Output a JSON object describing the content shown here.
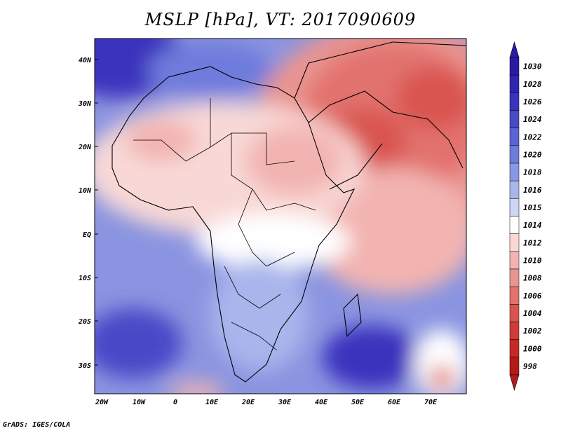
{
  "map": {
    "title": "MSLP [hPa], VT: 2017090609",
    "lat_labels": [
      "40N",
      "30N",
      "20N",
      "10N",
      "EQ",
      "10S",
      "20S",
      "30S"
    ],
    "lon_labels": [
      "20W",
      "10W",
      "0",
      "10E",
      "20E",
      "30E",
      "40E",
      "50E",
      "60E",
      "70E"
    ],
    "credit": "GrADS: IGES/COLA"
  },
  "colorbar": {
    "levels": [
      {
        "label": "1030",
        "color": "#2a1aa6"
      },
      {
        "label": "1028",
        "color": "#3024b0"
      },
      {
        "label": "1026",
        "color": "#3a33bd"
      },
      {
        "label": "1024",
        "color": "#4a4ac8"
      },
      {
        "label": "1022",
        "color": "#5c63d2"
      },
      {
        "label": "1020",
        "color": "#6e7cdc"
      },
      {
        "label": "1018",
        "color": "#8898e4"
      },
      {
        "label": "1016",
        "color": "#a9b6ec"
      },
      {
        "label": "1015",
        "color": "#cfd6f4"
      },
      {
        "label": "1014",
        "color": "#ffffff"
      },
      {
        "label": "1012",
        "color": "#f8d8d6"
      },
      {
        "label": "1010",
        "color": "#f2b4b1"
      },
      {
        "label": "1008",
        "color": "#ea9490"
      },
      {
        "label": "1006",
        "color": "#e2726e"
      },
      {
        "label": "1004",
        "color": "#d9544f"
      },
      {
        "label": "1002",
        "color": "#cf3b36"
      },
      {
        "label": "1000",
        "color": "#c42a26"
      },
      {
        "label": "998",
        "color": "#b31b18"
      }
    ]
  }
}
